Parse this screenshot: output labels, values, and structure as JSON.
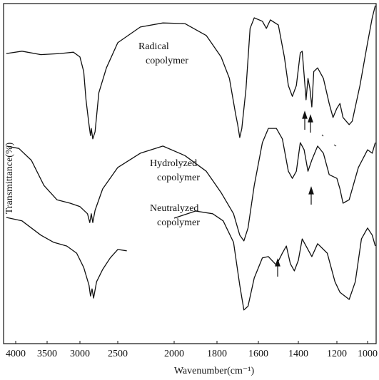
{
  "chart_data": {
    "type": "line",
    "x_label": "Wavenumber(cm⁻¹)",
    "y_label": "Transmittance(%)",
    "xlim": [
      4150,
      950
    ],
    "ylim": [
      0,
      100
    ],
    "xticks": [
      4000,
      3500,
      3000,
      2500,
      2000,
      1800,
      1600,
      1400,
      1200,
      1000
    ],
    "grid": false,
    "color": "#111111",
    "annotations": [
      [
        "Radical",
        "copolymer"
      ],
      [
        "Hydrolyzed",
        "copolymer"
      ],
      [
        "Neutralyzed",
        "copolymer"
      ]
    ],
    "series": [
      {
        "x": [
          4150,
          3900,
          3600,
          3300,
          3100,
          3000,
          2950,
          2920,
          2880,
          2860,
          2850,
          2830,
          2800,
          2750,
          2650,
          2500,
          2300,
          2100,
          1950,
          1850,
          1780,
          1740,
          1710,
          1700,
          1690,
          1680,
          1660,
          1640,
          1620,
          1580,
          1560,
          1540,
          1500,
          1470,
          1450,
          1430,
          1410,
          1390,
          1380,
          1370,
          1360,
          1350,
          1340,
          1330,
          1320,
          1300,
          1270,
          1240,
          1220,
          1200,
          1180,
          1160,
          1120,
          1100,
          1050,
          1000,
          970,
          950
        ],
        "values": [
          85.3,
          86,
          85,
          85.3,
          85.7,
          84.3,
          80,
          71.7,
          64.4,
          61.2,
          63.3,
          60.2,
          62.3,
          73.8,
          81.1,
          88.5,
          93.1,
          94.3,
          94.1,
          90.6,
          84.3,
          78,
          67.5,
          64.4,
          60.6,
          63.3,
          74.8,
          92.7,
          95.8,
          94.8,
          92.7,
          95.2,
          93.7,
          84.3,
          75.9,
          72.7,
          75.9,
          85.5,
          86,
          79,
          71.7,
          78,
          75,
          69.6,
          80,
          81.1,
          78,
          70.6,
          66.5,
          69.2,
          70.6,
          66.5,
          64.4,
          65.4,
          75.9,
          88.5,
          95.8,
          99.4
        ]
      },
      {
        "x": [
          4150,
          3950,
          3750,
          3550,
          3350,
          3150,
          3000,
          2900,
          2870,
          2850,
          2830,
          2800,
          2700,
          2500,
          2300,
          2100,
          1950,
          1850,
          1780,
          1720,
          1690,
          1670,
          1650,
          1620,
          1580,
          1550,
          1510,
          1480,
          1450,
          1430,
          1410,
          1390,
          1370,
          1350,
          1330,
          1300,
          1270,
          1240,
          1200,
          1180,
          1160,
          1120,
          1060,
          1000,
          970,
          950
        ],
        "values": [
          58.1,
          57.4,
          53.9,
          46.5,
          42.3,
          41.3,
          40.3,
          38.2,
          35.6,
          38.2,
          35.6,
          39.2,
          45.5,
          51.8,
          56,
          58.1,
          55.3,
          50.7,
          44.4,
          38.2,
          31.9,
          30.2,
          34,
          46.5,
          59.1,
          63.3,
          63.3,
          60.2,
          50.7,
          48.6,
          50.7,
          59.1,
          57,
          50.7,
          54,
          58.1,
          56,
          49.7,
          48.6,
          45.5,
          41.3,
          42.3,
          51.8,
          57,
          56,
          59.1
        ]
      },
      {
        "x": [
          4150,
          3900,
          3600,
          3400,
          3200,
          3050,
          2950,
          2880,
          2860,
          2840,
          2820,
          2780,
          2700,
          2600,
          2500,
          2420,
          null,
          2000,
          1900,
          1820,
          1770,
          1720,
          1690,
          1670,
          1650,
          1620,
          1580,
          1550,
          1510,
          1480,
          1460,
          1440,
          1420,
          1400,
          1380,
          1360,
          1330,
          1300,
          1250,
          1210,
          1180,
          1120,
          1080,
          1040,
          1000,
          970,
          950
        ],
        "values": [
          37.1,
          36.1,
          31.9,
          29.8,
          28.7,
          26.6,
          22.4,
          17.2,
          14,
          16.1,
          13.4,
          18.2,
          21.8,
          25.2,
          27.7,
          27.3,
          null,
          36.9,
          39,
          38.2,
          36.1,
          29.8,
          17.2,
          9.9,
          11,
          19.3,
          25.2,
          25.6,
          23.1,
          26.6,
          28.7,
          23.5,
          21.4,
          24.5,
          30.8,
          28.7,
          25.6,
          29.4,
          26.6,
          18.2,
          15.1,
          13,
          18.2,
          30.8,
          34,
          31.9,
          28.7
        ]
      }
    ]
  }
}
